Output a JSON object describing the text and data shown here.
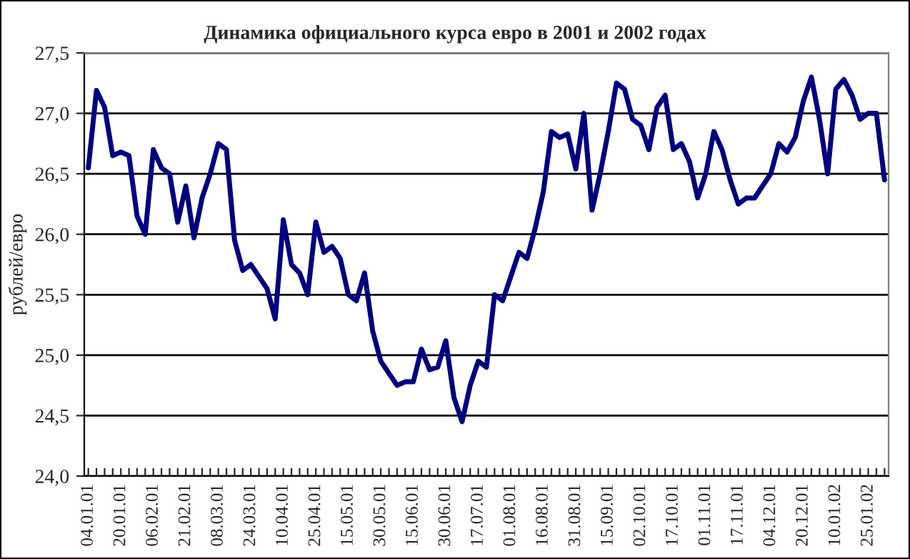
{
  "chart_data": {
    "type": "line",
    "title": "Динамика официального курса евро в 2001 и 2002 годах",
    "ylabel": "рублей/евро",
    "categories": [
      "04.01.01",
      null,
      null,
      null,
      "20.01.01",
      null,
      null,
      null,
      "06.02.01",
      null,
      null,
      null,
      "21.02.01",
      null,
      null,
      null,
      "08.03.01",
      null,
      null,
      null,
      "24.03.01",
      null,
      null,
      null,
      "10.04.01",
      null,
      null,
      null,
      "25.04.01",
      null,
      null,
      null,
      "15.05.01",
      null,
      null,
      null,
      "30.05.01",
      null,
      null,
      null,
      "15.06.01",
      null,
      null,
      null,
      "30.06.01",
      null,
      null,
      null,
      "17.07.01",
      null,
      null,
      null,
      "01.08.01",
      null,
      null,
      null,
      "16.08.01",
      null,
      null,
      null,
      "31.08.01",
      null,
      null,
      null,
      "15.09.01",
      null,
      null,
      null,
      "02.10.01",
      null,
      null,
      null,
      "17.10.01",
      null,
      null,
      null,
      "01.11.01",
      null,
      null,
      null,
      "17.11.01",
      null,
      null,
      null,
      "04.12.01",
      null,
      null,
      null,
      "20.12.01",
      null,
      null,
      null,
      "10.01.02",
      null,
      null,
      null,
      "25.01.02",
      null,
      null
    ],
    "series": [
      {
        "color": "#000080",
        "values": [
          26.55,
          27.19,
          27.05,
          26.65,
          26.68,
          26.65,
          26.15,
          26.0,
          26.7,
          26.55,
          26.5,
          26.1,
          26.4,
          25.97,
          26.3,
          26.5,
          26.75,
          26.7,
          25.95,
          25.7,
          25.75,
          25.65,
          25.55,
          25.3,
          26.12,
          25.75,
          25.68,
          25.5,
          26.1,
          25.85,
          25.9,
          25.8,
          25.5,
          25.45,
          25.68,
          25.2,
          24.95,
          24.85,
          24.75,
          24.78,
          24.78,
          25.05,
          24.88,
          24.9,
          25.12,
          24.65,
          24.45,
          24.75,
          24.95,
          24.9,
          25.5,
          25.45,
          25.65,
          25.85,
          25.8,
          26.05,
          26.35,
          26.85,
          26.8,
          26.83,
          26.54,
          27.0,
          26.2,
          26.5,
          26.85,
          27.25,
          27.2,
          26.95,
          26.9,
          26.7,
          27.05,
          27.15,
          26.7,
          26.75,
          26.6,
          26.3,
          26.5,
          26.85,
          26.7,
          26.45,
          26.25,
          26.3,
          26.3,
          26.4,
          26.5,
          26.75,
          26.68,
          26.8,
          27.1,
          27.3,
          26.95,
          26.5,
          27.2,
          27.28,
          27.15,
          26.95,
          27.0,
          27.0,
          26.45
        ]
      }
    ],
    "ylim": [
      24.0,
      27.5
    ],
    "yticks": [
      {
        "value": 24.0,
        "label": "24,0"
      },
      {
        "value": 24.5,
        "label": "24,5"
      },
      {
        "value": 25.0,
        "label": "25,0"
      },
      {
        "value": 25.5,
        "label": "25,5"
      },
      {
        "value": 26.0,
        "label": "26,0"
      },
      {
        "value": 26.5,
        "label": "26,5"
      },
      {
        "value": 27.0,
        "label": "27,0"
      },
      {
        "value": 27.5,
        "label": "27,5"
      }
    ],
    "grid": "y",
    "legend": false,
    "marker": "none",
    "line_style": "solid"
  }
}
